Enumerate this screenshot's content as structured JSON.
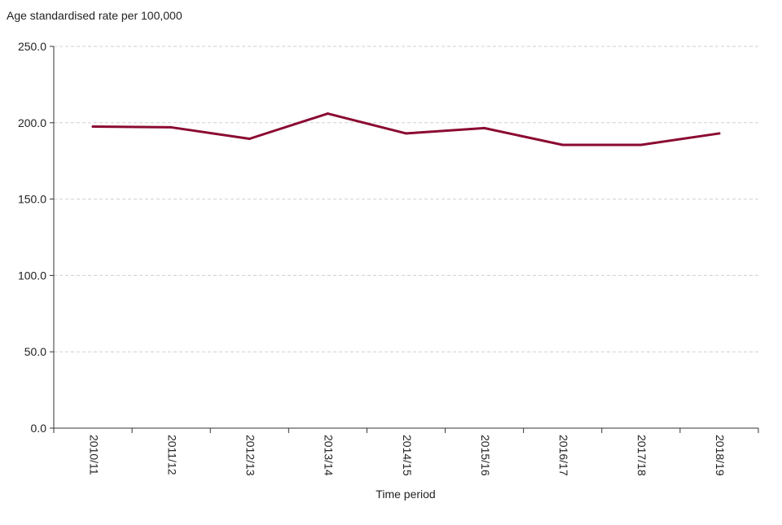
{
  "chart_data": {
    "type": "line",
    "title": "",
    "ylabel": "Age standardised rate per 100,000",
    "xlabel": "Time period",
    "categories": [
      "2010/11",
      "2011/12",
      "2012/13",
      "2013/14",
      "2014/15",
      "2015/16",
      "2016/17",
      "2017/18",
      "2018/19"
    ],
    "series": [
      {
        "values": [
          197.5,
          197.0,
          189.5,
          206.0,
          193.0,
          196.5,
          185.5,
          185.5,
          193.0
        ],
        "color": "#8b0a32"
      }
    ],
    "ylim": [
      0,
      250
    ],
    "yticks": [
      0,
      50,
      100,
      150,
      200,
      250
    ],
    "ytick_labels": [
      "0.0",
      "50.0",
      "100.0",
      "150.0",
      "200.0",
      "250.0"
    ],
    "grid": "horizontal dashed",
    "legend": "none"
  }
}
